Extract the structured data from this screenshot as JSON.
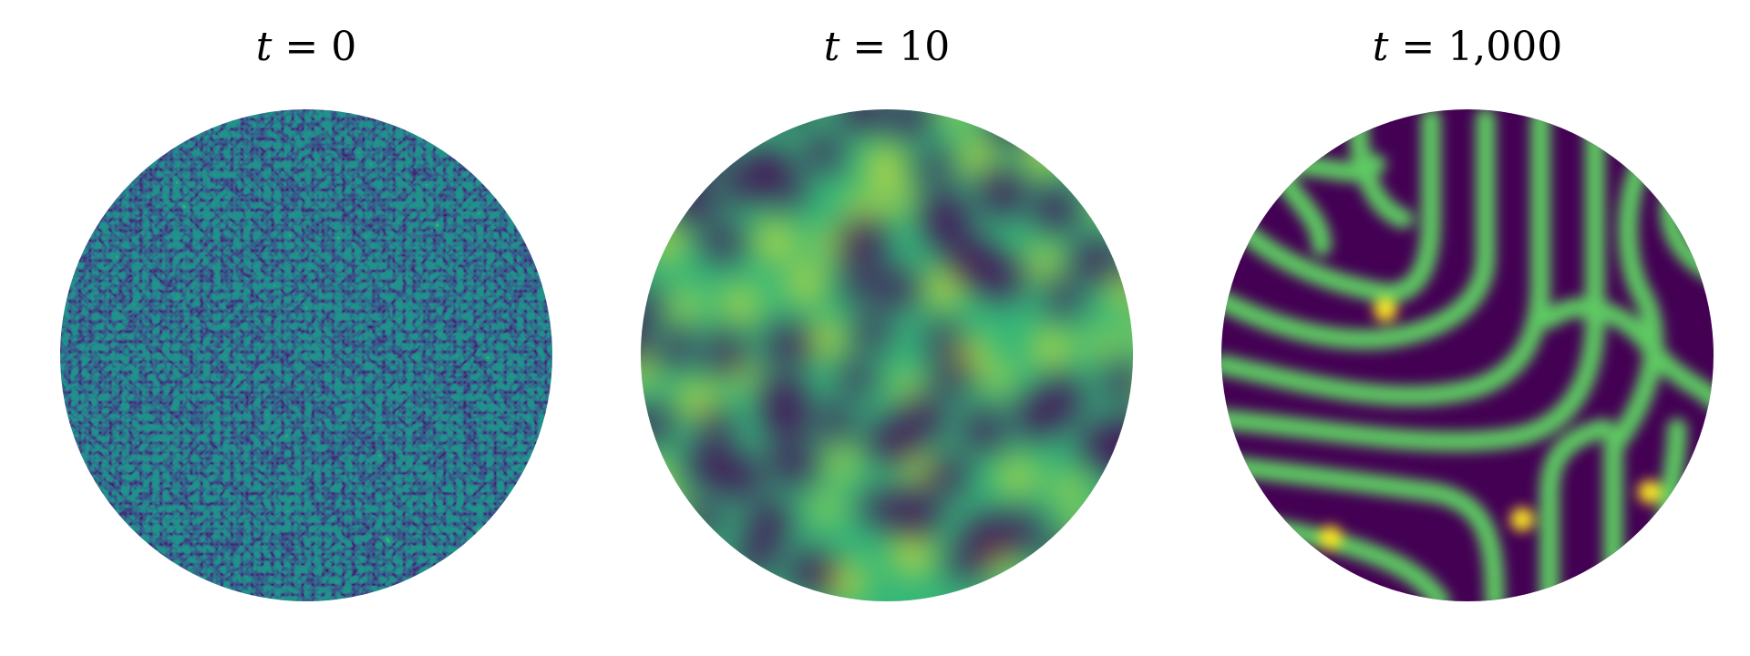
{
  "panels": [
    {
      "variable": "t",
      "equals": "=",
      "value": "0",
      "pattern": "noise"
    },
    {
      "variable": "t",
      "equals": "=",
      "value": "10",
      "pattern": "spots"
    },
    {
      "variable": "t",
      "equals": "=",
      "value": "1,000",
      "pattern": "stripes"
    }
  ],
  "colormap": [
    "#440154",
    "#3b528b",
    "#21918c",
    "#5ec962",
    "#fde725"
  ]
}
